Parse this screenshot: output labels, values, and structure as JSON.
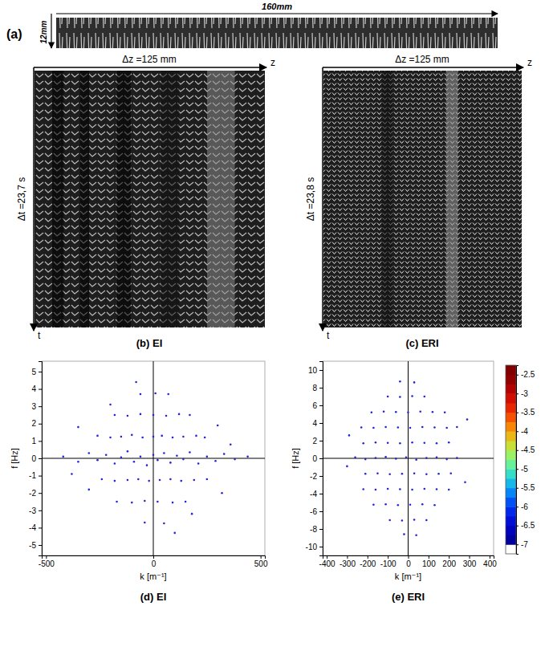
{
  "figure": {
    "a": {
      "label": "(a)",
      "width_label": "160mm",
      "height_label": "12mm"
    },
    "b": {
      "dz": "Δz =125 mm",
      "z": "z",
      "dt": "Δt =23,7 s",
      "t": "t",
      "caption": "(b) EI"
    },
    "c": {
      "dz": "Δz =125 mm",
      "z": "z",
      "dt": "Δt =23,8 s",
      "t": "t",
      "caption": "(c) ERI"
    }
  },
  "chart_data": [
    {
      "type": "scatter",
      "caption": "(d) EI",
      "xlabel": "k [m⁻¹]",
      "ylabel": "f [Hz]",
      "xlim": [
        -520,
        520
      ],
      "ylim": [
        -5.6,
        5.6
      ],
      "xticks": [
        -500,
        0,
        500
      ],
      "yticks": [
        -5,
        -4,
        -3,
        -2,
        -1,
        0,
        1,
        2,
        3,
        4,
        5
      ],
      "series": [
        {
          "color": "#2424d8",
          "marker": "dot",
          "x": [
            -420,
            -350,
            -300,
            -260,
            -220,
            -180,
            -150,
            -120,
            -90,
            -60,
            -30,
            0,
            20,
            50,
            80,
            110,
            140,
            170,
            210,
            250,
            290,
            330,
            380,
            440,
            -260,
            -200,
            -150,
            -100,
            -50,
            0,
            40,
            90,
            140,
            200,
            240,
            -240,
            -180,
            -120,
            -70,
            -20,
            30,
            80,
            130,
            190,
            250,
            -180,
            -120,
            -60,
            0,
            60,
            120,
            170,
            -170,
            -100,
            -40,
            20,
            90,
            150,
            -60,
            10,
            70,
            -40,
            50,
            -350,
            -300,
            300,
            320,
            -200,
            180,
            -380,
            360,
            -80,
            100
          ],
          "values": [
            0.1,
            -0.2,
            0.3,
            -0.1,
            0.2,
            -0.3,
            0.05,
            0.4,
            -0.2,
            0.1,
            -0.4,
            0.2,
            -0.1,
            0.3,
            -0.25,
            0.15,
            -0.05,
            0.35,
            -0.3,
            0.1,
            -0.15,
            0.25,
            -0.05,
            0.1,
            1.3,
            1.2,
            1.25,
            1.35,
            1.2,
            1.25,
            1.3,
            1.2,
            1.25,
            1.3,
            1.2,
            -1.2,
            -1.3,
            -1.25,
            -1.2,
            -1.3,
            -1.25,
            -1.2,
            -1.3,
            -1.25,
            -1.2,
            2.5,
            2.45,
            2.55,
            2.5,
            2.45,
            2.55,
            2.5,
            -2.5,
            -2.55,
            -2.45,
            -2.5,
            -2.55,
            -2.5,
            3.7,
            3.75,
            3.7,
            -3.7,
            -3.75,
            1.8,
            -1.8,
            1.9,
            -2,
            3.1,
            -3.2,
            -0.9,
            0.8,
            4.4,
            -4.3
          ]
        }
      ]
    },
    {
      "type": "scatter",
      "caption": "(e) ERI",
      "xlabel": "k [m⁻¹]",
      "ylabel": "f [Hz]",
      "xlim": [
        -420,
        420
      ],
      "ylim": [
        -11,
        11
      ],
      "xticks": [
        -400,
        -300,
        -200,
        -100,
        0,
        100,
        200,
        300,
        400
      ],
      "yticks": [
        -10,
        -8,
        -6,
        -4,
        -2,
        0,
        2,
        4,
        6,
        8,
        10
      ],
      "colorbar": {
        "range": [
          -7.25,
          -2.25
        ],
        "ticks": [
          -2.5,
          -3,
          -3.5,
          -4,
          -4.5,
          -5,
          -5.5,
          -6,
          -6.5,
          -7
        ]
      },
      "series": [
        {
          "color": "#2424d8",
          "marker": "dot",
          "x": [
            -260,
            -210,
            -160,
            -110,
            -60,
            -10,
            40,
            90,
            140,
            190,
            240,
            -220,
            -160,
            -100,
            -40,
            20,
            80,
            140,
            200,
            -210,
            -150,
            -90,
            -30,
            30,
            90,
            150,
            210,
            -230,
            -170,
            -110,
            -50,
            10,
            70,
            130,
            190,
            240,
            -220,
            -160,
            -100,
            -40,
            20,
            80,
            140,
            200,
            -180,
            -120,
            -60,
            0,
            60,
            120,
            180,
            -170,
            -110,
            -50,
            10,
            70,
            130,
            -100,
            -40,
            20,
            80,
            -90,
            -30,
            30,
            90,
            -40,
            30,
            -20,
            40,
            -290,
            280,
            -300,
            290
          ],
          "values": [
            0.1,
            -0.1,
            0.05,
            0.15,
            -0.05,
            0.1,
            -0.15,
            0.05,
            0.1,
            -0.1,
            0.05,
            1.7,
            1.8,
            1.75,
            1.7,
            1.8,
            1.75,
            1.7,
            1.8,
            -1.75,
            -1.7,
            -1.8,
            -1.75,
            -1.7,
            -1.8,
            -1.75,
            -1.7,
            3.5,
            3.45,
            3.55,
            3.5,
            3.45,
            3.55,
            3.5,
            3.45,
            3.55,
            -3.5,
            -3.55,
            -3.45,
            -3.5,
            -3.55,
            -3.45,
            -3.5,
            -3.55,
            5.2,
            5.3,
            5.25,
            5.2,
            5.3,
            5.25,
            5.2,
            -5.25,
            -5.2,
            -5.3,
            -5.25,
            -5.2,
            -5.3,
            7,
            6.95,
            7.05,
            7,
            -7,
            -7.05,
            -6.95,
            -7,
            8.7,
            8.6,
            -8.6,
            -8.7,
            2.6,
            -2.7,
            -0.9,
            4.4
          ]
        }
      ]
    }
  ]
}
